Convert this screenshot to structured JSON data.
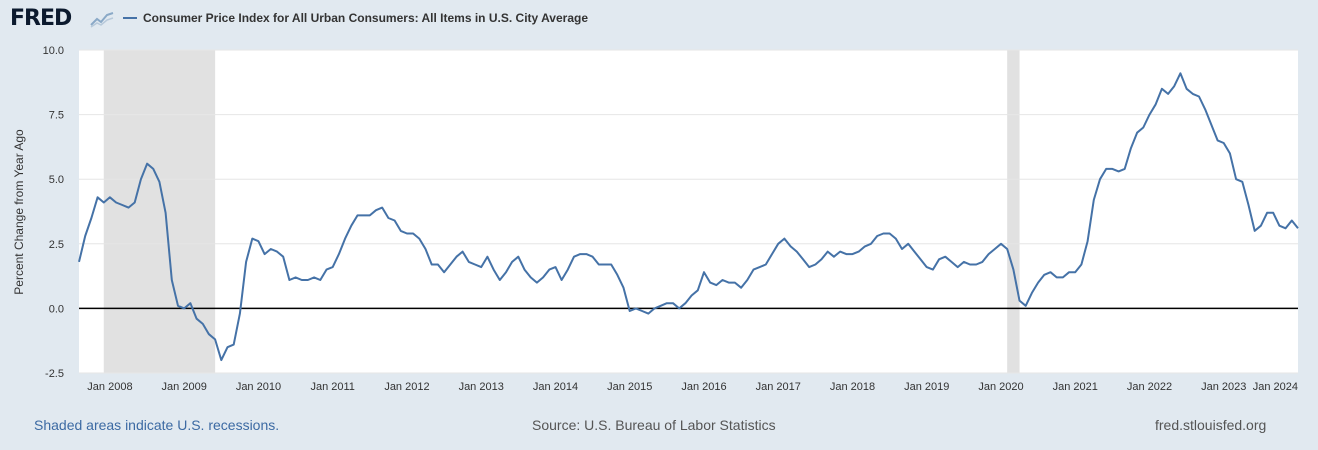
{
  "header": {
    "logo_text": "FRED",
    "logo_graph_icon": "trend-graph-icon",
    "legend_label": "Consumer Price Index for All Urban Consumers: All Items in U.S. City Average",
    "series_color": "#4572a7"
  },
  "footer": {
    "recession_note": "Shaded areas indicate U.S. recessions.",
    "source": "Source: U.S. Bureau of Labor Statistics",
    "site": "fred.stlouisfed.org"
  },
  "chart_data": {
    "type": "line",
    "title": "",
    "xlabel": "",
    "ylabel": "Percent Change from Year Ago",
    "ylim": [
      -2.5,
      10.0
    ],
    "yticks": [
      "10.0",
      "7.5",
      "5.0",
      "2.5",
      "0.0",
      "-2.5"
    ],
    "ytick_values": [
      10.0,
      7.5,
      5.0,
      2.5,
      0.0,
      -2.5
    ],
    "xlim": [
      "2007-08",
      "2024-01"
    ],
    "xticks": [
      "Jan 2008",
      "Jan 2009",
      "Jan 2010",
      "Jan 2011",
      "Jan 2012",
      "Jan 2013",
      "Jan 2014",
      "Jan 2015",
      "Jan 2016",
      "Jan 2017",
      "Jan 2018",
      "Jan 2019",
      "Jan 2020",
      "Jan 2021",
      "Jan 2022",
      "Jan 2023",
      "Jan 2024"
    ],
    "xtick_dates": [
      "2008-01",
      "2009-01",
      "2010-01",
      "2011-01",
      "2012-01",
      "2013-01",
      "2014-01",
      "2015-01",
      "2016-01",
      "2017-01",
      "2018-01",
      "2019-01",
      "2020-01",
      "2021-01",
      "2022-01",
      "2023-01",
      "2024-01"
    ],
    "grid": true,
    "zero_line": true,
    "recessions": [
      {
        "start": "2007-12",
        "end": "2009-06"
      },
      {
        "start": "2020-02",
        "end": "2020-04"
      }
    ],
    "x": [
      "2007-08",
      "2007-09",
      "2007-10",
      "2007-11",
      "2007-12",
      "2008-01",
      "2008-02",
      "2008-03",
      "2008-04",
      "2008-05",
      "2008-06",
      "2008-07",
      "2008-08",
      "2008-09",
      "2008-10",
      "2008-11",
      "2008-12",
      "2009-01",
      "2009-02",
      "2009-03",
      "2009-04",
      "2009-05",
      "2009-06",
      "2009-07",
      "2009-08",
      "2009-09",
      "2009-10",
      "2009-11",
      "2009-12",
      "2010-01",
      "2010-02",
      "2010-03",
      "2010-04",
      "2010-05",
      "2010-06",
      "2010-07",
      "2010-08",
      "2010-09",
      "2010-10",
      "2010-11",
      "2010-12",
      "2011-01",
      "2011-02",
      "2011-03",
      "2011-04",
      "2011-05",
      "2011-06",
      "2011-07",
      "2011-08",
      "2011-09",
      "2011-10",
      "2011-11",
      "2011-12",
      "2012-01",
      "2012-02",
      "2012-03",
      "2012-04",
      "2012-05",
      "2012-06",
      "2012-07",
      "2012-08",
      "2012-09",
      "2012-10",
      "2012-11",
      "2012-12",
      "2013-01",
      "2013-02",
      "2013-03",
      "2013-04",
      "2013-05",
      "2013-06",
      "2013-07",
      "2013-08",
      "2013-09",
      "2013-10",
      "2013-11",
      "2013-12",
      "2014-01",
      "2014-02",
      "2014-03",
      "2014-04",
      "2014-05",
      "2014-06",
      "2014-07",
      "2014-08",
      "2014-09",
      "2014-10",
      "2014-11",
      "2014-12",
      "2015-01",
      "2015-02",
      "2015-03",
      "2015-04",
      "2015-05",
      "2015-06",
      "2015-07",
      "2015-08",
      "2015-09",
      "2015-10",
      "2015-11",
      "2015-12",
      "2016-01",
      "2016-02",
      "2016-03",
      "2016-04",
      "2016-05",
      "2016-06",
      "2016-07",
      "2016-08",
      "2016-09",
      "2016-10",
      "2016-11",
      "2016-12",
      "2017-01",
      "2017-02",
      "2017-03",
      "2017-04",
      "2017-05",
      "2017-06",
      "2017-07",
      "2017-08",
      "2017-09",
      "2017-10",
      "2017-11",
      "2017-12",
      "2018-01",
      "2018-02",
      "2018-03",
      "2018-04",
      "2018-05",
      "2018-06",
      "2018-07",
      "2018-08",
      "2018-09",
      "2018-10",
      "2018-11",
      "2018-12",
      "2019-01",
      "2019-02",
      "2019-03",
      "2019-04",
      "2019-05",
      "2019-06",
      "2019-07",
      "2019-08",
      "2019-09",
      "2019-10",
      "2019-11",
      "2019-12",
      "2020-01",
      "2020-02",
      "2020-03",
      "2020-04",
      "2020-05",
      "2020-06",
      "2020-07",
      "2020-08",
      "2020-09",
      "2020-10",
      "2020-11",
      "2020-12",
      "2021-01",
      "2021-02",
      "2021-03",
      "2021-04",
      "2021-05",
      "2021-06",
      "2021-07",
      "2021-08",
      "2021-09",
      "2021-10",
      "2021-11",
      "2021-12",
      "2022-01",
      "2022-02",
      "2022-03",
      "2022-04",
      "2022-05",
      "2022-06",
      "2022-07",
      "2022-08",
      "2022-09",
      "2022-10",
      "2022-11",
      "2022-12",
      "2023-01",
      "2023-02",
      "2023-03",
      "2023-04",
      "2023-05",
      "2023-06",
      "2023-07",
      "2023-08",
      "2023-09",
      "2023-10",
      "2023-11",
      "2023-12",
      "2024-01"
    ],
    "series": [
      {
        "values": [
          1.8,
          2.8,
          3.5,
          4.3,
          4.1,
          4.3,
          4.1,
          4.0,
          3.9,
          4.1,
          5.0,
          5.6,
          5.4,
          4.9,
          3.7,
          1.1,
          0.1,
          0.0,
          0.2,
          -0.4,
          -0.6,
          -1.0,
          -1.2,
          -2.0,
          -1.5,
          -1.4,
          -0.2,
          1.8,
          2.7,
          2.6,
          2.1,
          2.3,
          2.2,
          2.0,
          1.1,
          1.2,
          1.1,
          1.1,
          1.2,
          1.1,
          1.5,
          1.6,
          2.1,
          2.7,
          3.2,
          3.6,
          3.6,
          3.6,
          3.8,
          3.9,
          3.5,
          3.4,
          3.0,
          2.9,
          2.9,
          2.7,
          2.3,
          1.7,
          1.7,
          1.4,
          1.7,
          2.0,
          2.2,
          1.8,
          1.7,
          1.6,
          2.0,
          1.5,
          1.1,
          1.4,
          1.8,
          2.0,
          1.5,
          1.2,
          1.0,
          1.2,
          1.5,
          1.6,
          1.1,
          1.5,
          2.0,
          2.1,
          2.1,
          2.0,
          1.7,
          1.7,
          1.7,
          1.3,
          0.8,
          -0.1,
          0.0,
          -0.1,
          -0.2,
          0.0,
          0.1,
          0.2,
          0.2,
          0.0,
          0.2,
          0.5,
          0.7,
          1.4,
          1.0,
          0.9,
          1.1,
          1.0,
          1.0,
          0.8,
          1.1,
          1.5,
          1.6,
          1.7,
          2.1,
          2.5,
          2.7,
          2.4,
          2.2,
          1.9,
          1.6,
          1.7,
          1.9,
          2.2,
          2.0,
          2.2,
          2.1,
          2.1,
          2.2,
          2.4,
          2.5,
          2.8,
          2.9,
          2.9,
          2.7,
          2.3,
          2.5,
          2.2,
          1.9,
          1.6,
          1.5,
          1.9,
          2.0,
          1.8,
          1.6,
          1.8,
          1.7,
          1.7,
          1.8,
          2.1,
          2.3,
          2.5,
          2.3,
          1.5,
          0.3,
          0.1,
          0.6,
          1.0,
          1.3,
          1.4,
          1.2,
          1.2,
          1.4,
          1.4,
          1.7,
          2.6,
          4.2,
          5.0,
          5.4,
          5.4,
          5.3,
          5.4,
          6.2,
          6.8,
          7.0,
          7.5,
          7.9,
          8.5,
          8.3,
          8.6,
          9.1,
          8.5,
          8.3,
          8.2,
          7.7,
          7.1,
          6.5,
          6.4,
          6.0,
          5.0,
          4.9,
          4.0,
          3.0,
          3.2,
          3.7,
          3.7,
          3.2,
          3.1,
          3.4,
          3.1
        ]
      }
    ]
  }
}
